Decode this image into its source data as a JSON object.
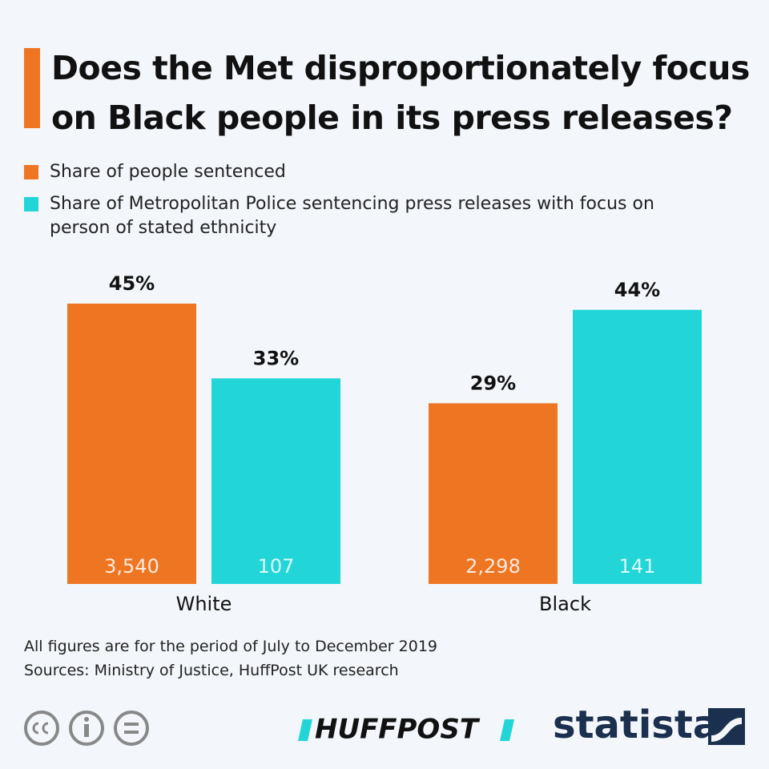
{
  "chart_data": {
    "type": "bar",
    "title": "Does the Met disproportionately focus on Black people in its press releases?",
    "categories": [
      "White",
      "Black"
    ],
    "series": [
      {
        "name": "Share of people sentenced",
        "color": "#ee7623",
        "values": [
          45,
          29
        ],
        "value_labels": [
          "45%",
          "29%"
        ],
        "counts": [
          3540,
          2298
        ],
        "count_labels": [
          "3,540",
          "2,298"
        ]
      },
      {
        "name": "Share of Metropolitan Police sentencing press releases with focus on person of stated ethnicity",
        "color": "#22d6d8",
        "values": [
          33,
          44
        ],
        "value_labels": [
          "33%",
          "44%"
        ],
        "counts": [
          107,
          141
        ],
        "count_labels": [
          "107",
          "141"
        ]
      }
    ],
    "notes": [
      "All figures are for the period of July to December 2019",
      "Sources: Ministry of Justice, HuffPost UK research"
    ],
    "brands": [
      "HUFFPOST",
      "statista"
    ]
  }
}
